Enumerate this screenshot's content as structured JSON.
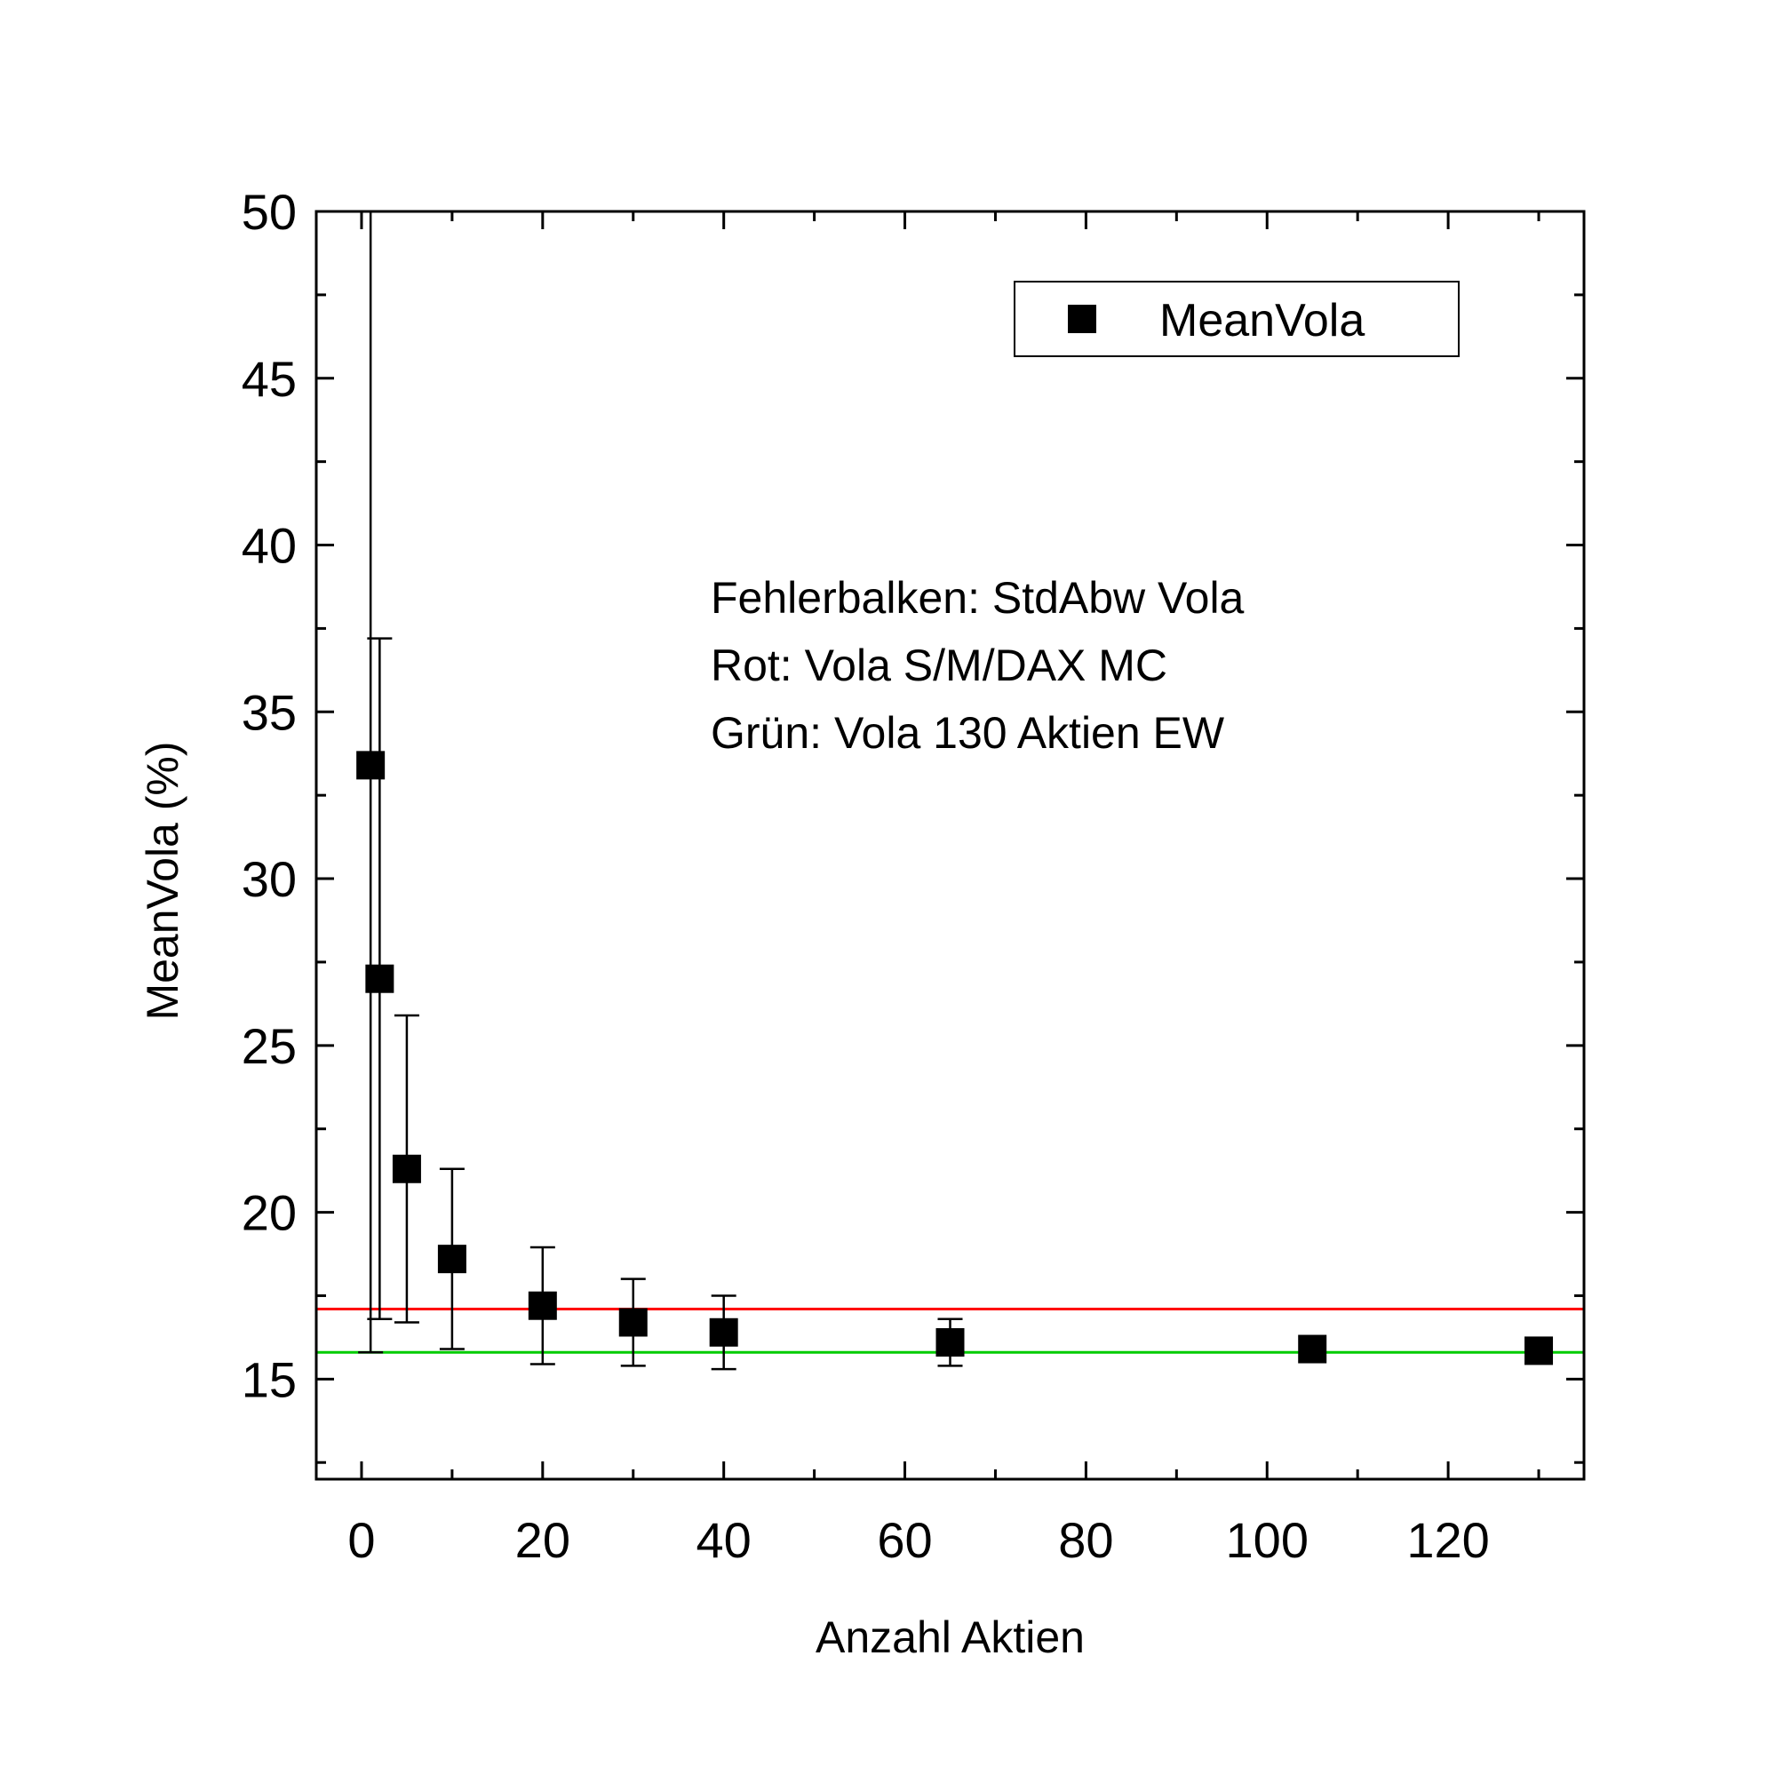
{
  "chart_data": {
    "type": "scatter",
    "title": "",
    "xlabel": "Anzahl Aktien",
    "ylabel": "MeanVola (%)",
    "xlim": [
      -5,
      135
    ],
    "ylim": [
      12,
      50
    ],
    "x_ticks": [
      0,
      20,
      40,
      60,
      80,
      100,
      120
    ],
    "y_ticks": [
      15,
      20,
      25,
      30,
      35,
      40,
      45,
      50
    ],
    "grid": false,
    "legend": {
      "position": "top-right",
      "entries": [
        "MeanVola"
      ]
    },
    "series": [
      {
        "name": "MeanVola",
        "marker": "square",
        "color": "#000000",
        "points": [
          {
            "x": 1,
            "y": 33.4,
            "err": 17.6
          },
          {
            "x": 2,
            "y": 27.0,
            "err": 10.2
          },
          {
            "x": 5,
            "y": 21.3,
            "err": 4.6
          },
          {
            "x": 10,
            "y": 18.6,
            "err": 2.7
          },
          {
            "x": 20,
            "y": 17.2,
            "err": 1.75
          },
          {
            "x": 30,
            "y": 16.7,
            "err": 1.3
          },
          {
            "x": 40,
            "y": 16.4,
            "err": 1.1
          },
          {
            "x": 65,
            "y": 16.1,
            "err": 0.7
          },
          {
            "x": 105,
            "y": 15.9,
            "err": 0.3
          },
          {
            "x": 130,
            "y": 15.85,
            "err": 0.1
          }
        ]
      }
    ],
    "reference_lines": [
      {
        "name": "Rot: Vola S/M/DAX MC",
        "y": 17.1,
        "color": "#ff0000"
      },
      {
        "name": "Grün: Vola 130 Aktien EW",
        "y": 15.8,
        "color": "#00cc00"
      }
    ],
    "annotations": [
      "Fehlerbalken: StdAbw Vola",
      "Rot: Vola S/M/DAX MC",
      "Grün: Vola 130 Aktien EW"
    ]
  }
}
